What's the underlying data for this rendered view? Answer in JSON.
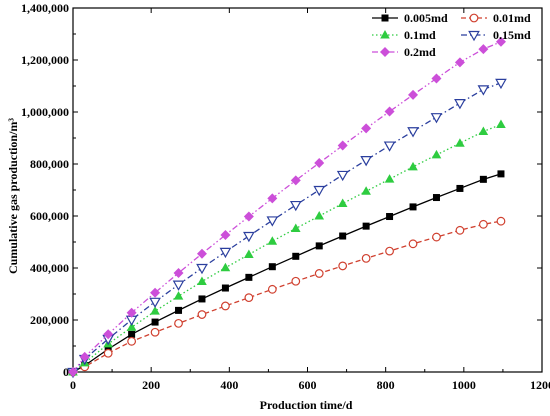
{
  "chart_data": {
    "type": "line",
    "xlabel": "Production time/d",
    "ylabel": "Cumulative gas production/m³",
    "xlim": [
      0,
      1200
    ],
    "ylim": [
      0,
      1400000
    ],
    "xticks": [
      0,
      200,
      400,
      600,
      800,
      1000,
      1200
    ],
    "yticks": [
      0,
      200000,
      400000,
      600000,
      800000,
      1000000,
      1200000,
      1400000
    ],
    "xtick_labels": [
      "0",
      "200",
      "400",
      "600",
      "800",
      "1000",
      "1200"
    ],
    "ytick_labels": [
      "0",
      "200,000",
      "400,000",
      "600,000",
      "800,000",
      "1,000,000",
      "1,200,000",
      "1,400,000"
    ],
    "grid": false,
    "legend_position": "top-right",
    "x": [
      0,
      30,
      90,
      150,
      210,
      270,
      330,
      390,
      450,
      510,
      570,
      630,
      690,
      750,
      810,
      870,
      930,
      990,
      1050,
      1095
    ],
    "series": [
      {
        "name": "0.005md",
        "color": "#000000",
        "marker": "square-filled",
        "line_style": "solid",
        "values": [
          0,
          25000,
          88000,
          145000,
          192000,
          237000,
          281000,
          323000,
          364000,
          405000,
          445000,
          485000,
          523000,
          561000,
          598000,
          635000,
          671000,
          706000,
          741000,
          762000
        ]
      },
      {
        "name": "0.01md",
        "color": "#d0402f",
        "marker": "circle-open",
        "line_style": "dashed",
        "values": [
          0,
          20000,
          72000,
          118000,
          153000,
          187000,
          221000,
          254000,
          286000,
          318000,
          349000,
          379000,
          408000,
          437000,
          465000,
          493000,
          519000,
          545000,
          568000,
          580000
        ]
      },
      {
        "name": "0.1md",
        "color": "#2ecc40",
        "marker": "triangle-up-filled",
        "line_style": "dotted",
        "values": [
          0,
          35000,
          108000,
          172000,
          234000,
          292000,
          348000,
          401000,
          452000,
          503000,
          552000,
          600000,
          648000,
          695000,
          742000,
          789000,
          835000,
          880000,
          925000,
          952000
        ]
      },
      {
        "name": "0.15md",
        "color": "#2b3f9e",
        "marker": "triangle-down-open",
        "line_style": "dashdot",
        "values": [
          0,
          50000,
          127000,
          201000,
          270000,
          336000,
          400000,
          462000,
          523000,
          583000,
          642000,
          700000,
          758000,
          815000,
          871000,
          926000,
          980000,
          1034000,
          1087000,
          1112000
        ]
      },
      {
        "name": "0.2md",
        "color": "#cc4fd9",
        "marker": "diamond-filled",
        "line_style": "dashdotdot",
        "values": [
          0,
          58000,
          145000,
          228000,
          305000,
          381000,
          455000,
          527000,
          598000,
          668000,
          737000,
          804000,
          871000,
          937000,
          1002000,
          1066000,
          1129000,
          1191000,
          1242000,
          1270000
        ]
      }
    ]
  }
}
